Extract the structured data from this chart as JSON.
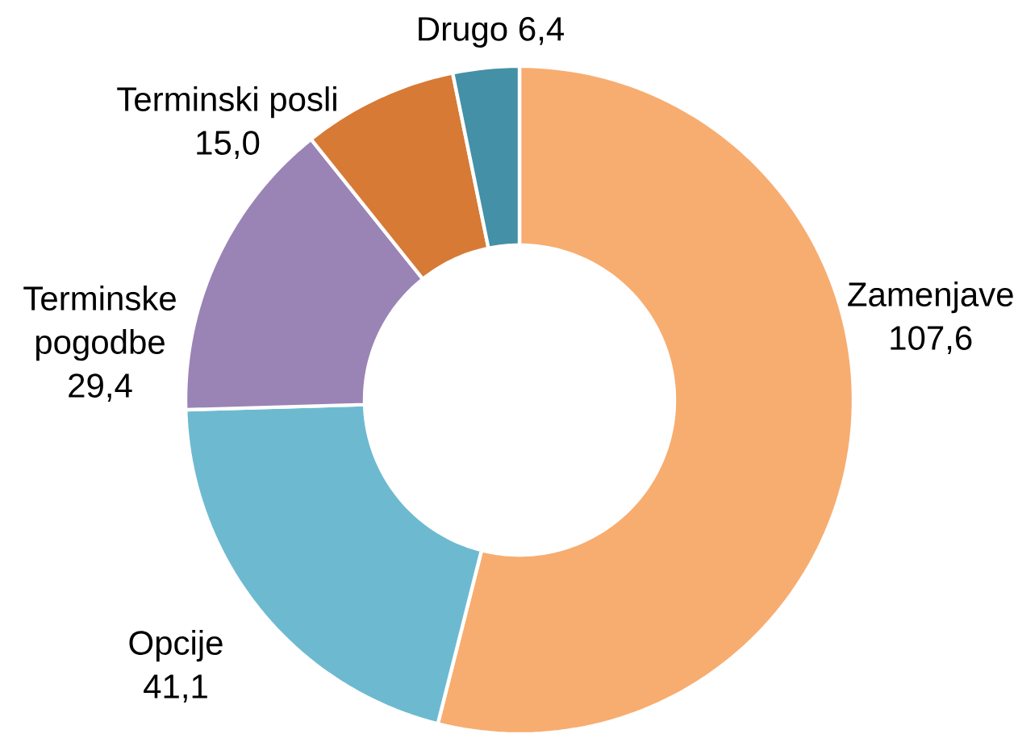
{
  "chart_data": {
    "type": "donut",
    "categories": [
      "Zamenjave",
      "Opcije",
      "Terminske pogodbe",
      "Terminski posli",
      "Drugo"
    ],
    "values": [
      107.6,
      41.1,
      29.4,
      15.0,
      6.4
    ],
    "value_labels": [
      "107,6",
      "41,1",
      "29,4",
      "15,0",
      "6,4"
    ],
    "colors": [
      "#f7ad70",
      "#6dbad0",
      "#9a83b5",
      "#d67a35",
      "#4490a6"
    ]
  }
}
